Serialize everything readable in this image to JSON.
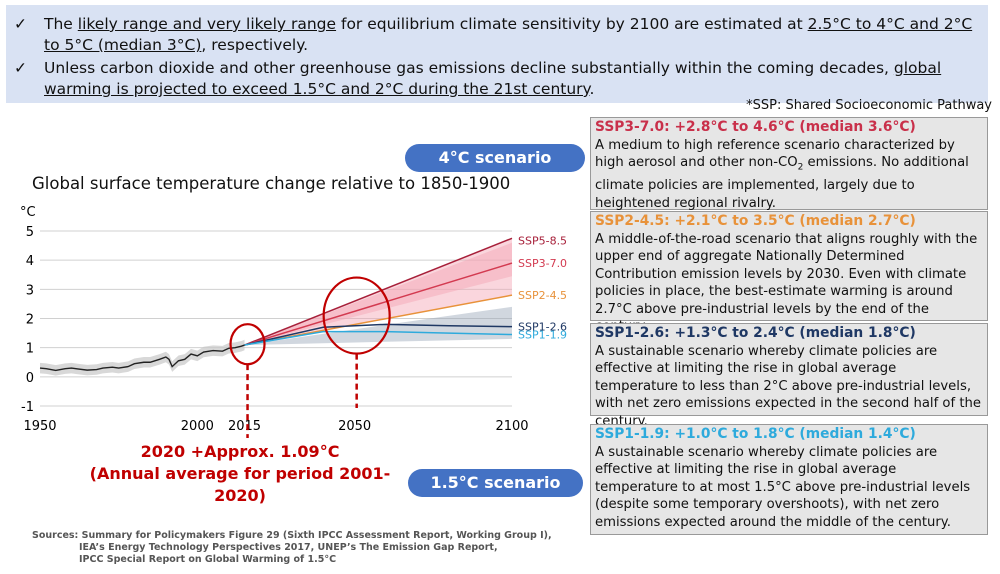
{
  "banner": {
    "bullets": [
      {
        "check": "✓",
        "parts": [
          "The ",
          "likely range and very likely range",
          " for equilibrium climate sensitivity by 2100 are estimated at ",
          "2.5°C to 4°C and 2°C to 5°C (median 3°C)",
          ", respectively."
        ]
      },
      {
        "check": "✓",
        "parts": [
          "Unless carbon dioxide and other greenhouse gas emissions decline substantially within the coming decades, ",
          "global warming is projected to exceed 1.5°C and 2°C during the 21st century",
          "."
        ]
      }
    ]
  },
  "ssp_note": "*SSP: Shared Socioeconomic Pathway",
  "oval_4c": "4°C scenario",
  "oval_15c": "1.5°C scenario",
  "annotation": {
    "line1": "2020 +Approx. 1.09°C",
    "line2": "(Annual average for period 2001-2020)"
  },
  "sources": {
    "line1": "Sources: Summary for Policymakers Figure 29 (Sixth IPCC Assessment Report, Working Group I),",
    "line2": "IEA’s Energy Technology Perspectives 2017, UNEP’s The Emission Gap Report,",
    "line3": "IPCC Special Report on Global Warming of 1.5°C"
  },
  "boxes": [
    {
      "color": "#c9304a",
      "heading": "SSP3-7.0: +2.8°C to 4.6°C (median 3.6°C)",
      "body_pre": "A medium to high reference scenario characterized by high aerosol and other non-CO",
      "body_sub": "2",
      "body_post": " emissions. No additional climate policies are implemented, largely due to heightened regional rivalry."
    },
    {
      "color": "#e8923a",
      "heading": "SSP2-4.5: +2.1°C to 3.5°C (median 2.7°C)",
      "body": "A middle-of-the-road scenario that aligns roughly with the upper end of aggregate Nationally Determined Contribution emission levels by 2030. Even with climate policies in place, the best-estimate warming is around 2.7°C above pre-industrial levels by the end of the century."
    },
    {
      "color": "#1f3864",
      "heading": "SSP1-2.6: +1.3°C to 2.4°C (median 1.8°C)",
      "body": "A sustainable scenario whereby climate policies are effective at limiting the rise in global average temperature to less than 2°C above pre-industrial levels, with net zero emissions expected in the second half of the century."
    },
    {
      "color": "#2eaadc",
      "heading": "SSP1-1.9: +1.0°C to 1.8°C (median 1.4°C)",
      "body": "A sustainable scenario whereby climate policies are effective at limiting the rise in global average temperature to at most 1.5°C above pre-industrial levels (despite some temporary overshoots), with net zero emissions expected around the middle of the century."
    }
  ],
  "chart_data": {
    "type": "line",
    "title": "Global surface temperature change relative to 1850-1900",
    "ylabel": "°C",
    "xlim": [
      1950,
      2100
    ],
    "ylim": [
      -1,
      5
    ],
    "x_ticks": [
      "1950",
      "2000",
      "2015",
      "2050",
      "2100"
    ],
    "x_tick_values": [
      1950,
      2000,
      2015,
      2050,
      2100
    ],
    "y_ticks": [
      "-1",
      "0",
      "1",
      "2",
      "3",
      "4",
      "5"
    ],
    "y_tick_values": [
      -1,
      0,
      1,
      2,
      3,
      4,
      5
    ],
    "grid": true,
    "historical": {
      "x": [
        1950,
        1952,
        1955,
        1958,
        1960,
        1962,
        1965,
        1968,
        1970,
        1973,
        1975,
        1978,
        1980,
        1983,
        1985,
        1988,
        1990,
        1991,
        1992,
        1994,
        1996,
        1998,
        2000,
        2002,
        2005,
        2008,
        2010,
        2012,
        2014,
        2015
      ],
      "y": [
        0.3,
        0.28,
        0.22,
        0.28,
        0.3,
        0.27,
        0.23,
        0.25,
        0.3,
        0.33,
        0.3,
        0.35,
        0.45,
        0.5,
        0.5,
        0.6,
        0.68,
        0.6,
        0.35,
        0.55,
        0.6,
        0.78,
        0.72,
        0.85,
        0.9,
        0.88,
        0.98,
        1.0,
        1.05,
        1.09
      ]
    },
    "series": [
      {
        "name": "SSP5-8.5",
        "color": "#a7203a",
        "x": [
          2015,
          2100
        ],
        "y": [
          1.09,
          4.75
        ],
        "band": [
          [
            1.09,
            1.09
          ],
          [
            3.45,
            4.75
          ]
        ]
      },
      {
        "name": "SSP3-7.0",
        "color": "#d33a50",
        "x": [
          2015,
          2100
        ],
        "y": [
          1.09,
          3.9
        ],
        "band": [
          [
            1.09,
            1.09
          ],
          [
            2.8,
            4.6
          ]
        ]
      },
      {
        "name": "SSP2-4.5",
        "color": "#e8923a",
        "x": [
          2015,
          2100
        ],
        "y": [
          1.09,
          2.8
        ],
        "band": []
      },
      {
        "name": "SSP1-2.6",
        "color": "#1f3864",
        "x": [
          2015,
          2040,
          2060,
          2080,
          2100
        ],
        "y": [
          1.09,
          1.7,
          1.8,
          1.75,
          1.72
        ],
        "band": [
          [
            1.09,
            1.09
          ],
          [
            1.3,
            2.4
          ]
        ]
      },
      {
        "name": "SSP1-1.9",
        "color": "#2eaadc",
        "x": [
          2015,
          2040,
          2060,
          2080,
          2100
        ],
        "y": [
          1.09,
          1.55,
          1.55,
          1.5,
          1.45
        ],
        "band": []
      }
    ],
    "circles_at_years": [
      2015,
      2050
    ],
    "colors": {
      "annotation": "#c00000",
      "oval": "#4472c4",
      "box_fill": "#e6e6e6"
    }
  }
}
